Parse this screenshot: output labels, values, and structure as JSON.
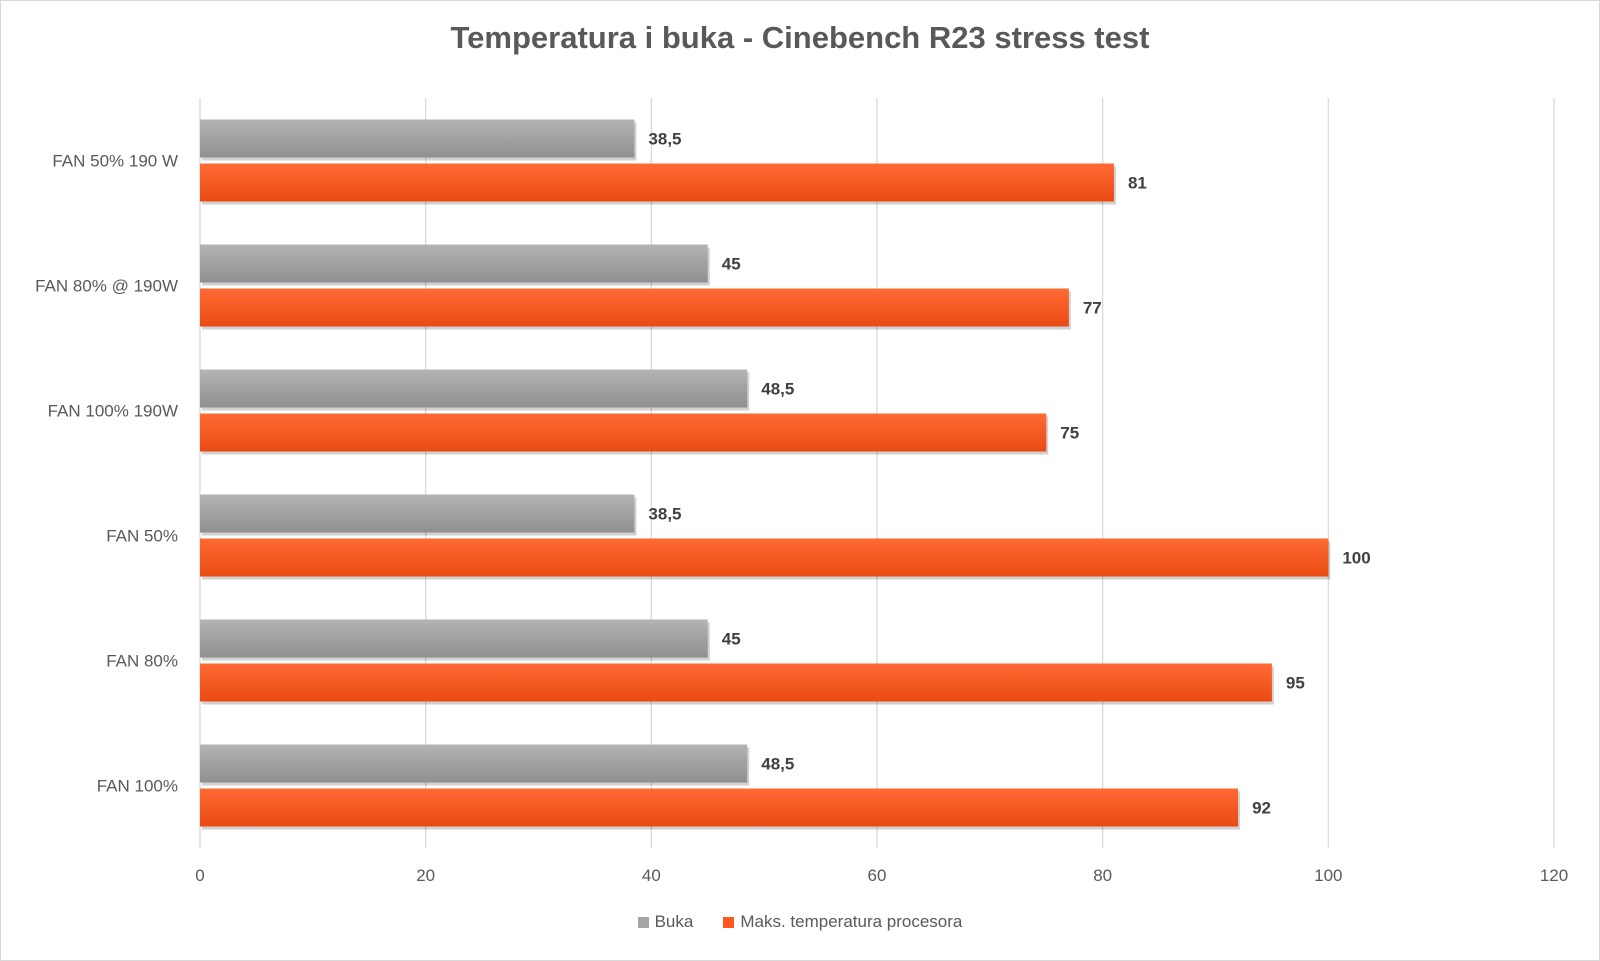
{
  "chart_data": {
    "type": "bar",
    "orientation": "horizontal",
    "title": "Temperatura i buka - Cinebench R23 stress test",
    "categories": [
      "FAN 50% 190 W",
      "FAN 80% @ 190W",
      "FAN 100% 190W",
      "FAN 50%",
      "FAN 80%",
      "FAN 100%"
    ],
    "series": [
      {
        "name": "Buka",
        "values": [
          38.5,
          45,
          48.5,
          38.5,
          45,
          48.5
        ],
        "labels": [
          "38,5",
          "45",
          "48,5",
          "38,5",
          "45",
          "48,5"
        ],
        "color": "#a6a6a6"
      },
      {
        "name": "Maks. temperatura procesora",
        "values": [
          81,
          77,
          75,
          100,
          95,
          92
        ],
        "labels": [
          "81",
          "77",
          "75",
          "100",
          "95",
          "92"
        ],
        "color": "#ff5722"
      }
    ],
    "xlim": [
      0,
      120
    ],
    "xticks": [
      0,
      20,
      40,
      60,
      80,
      100,
      120
    ],
    "grid": true,
    "legend_position": "bottom"
  }
}
